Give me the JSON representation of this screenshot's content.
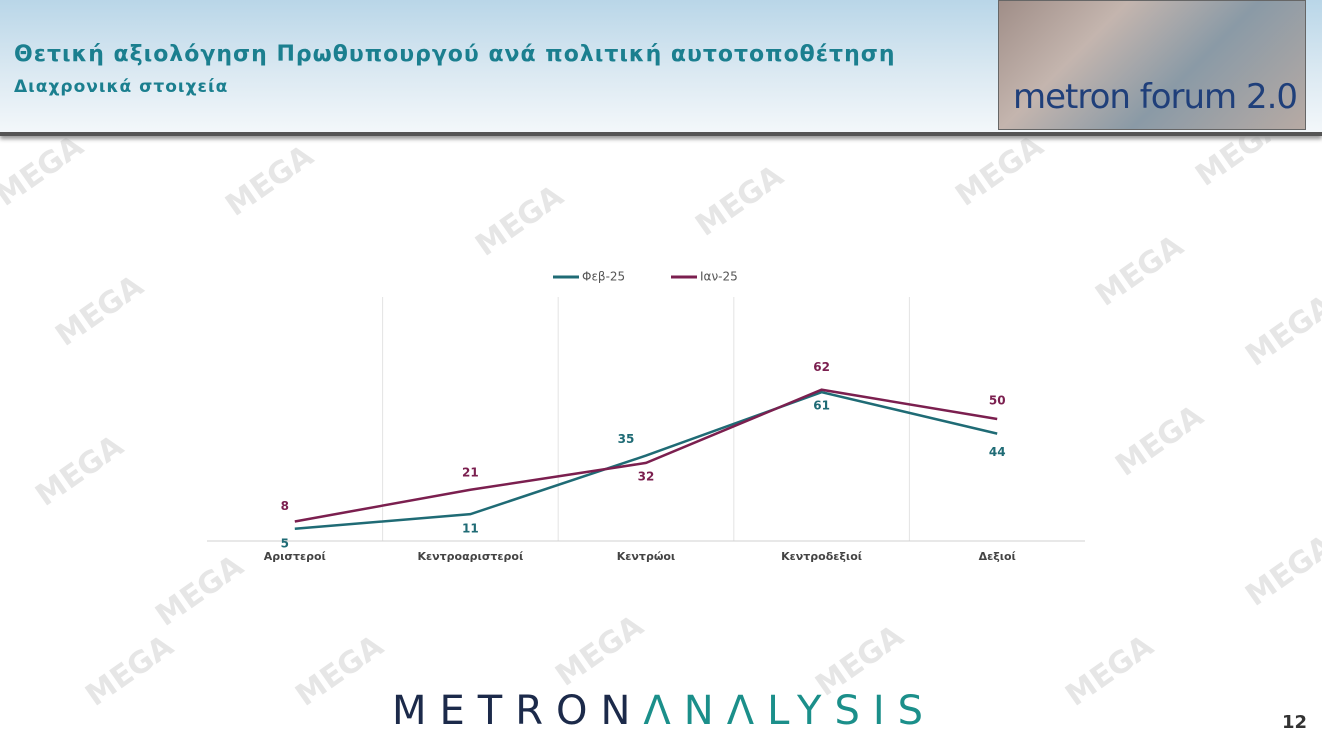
{
  "header": {
    "title": "Θετική αξιολόγηση Πρωθυπουργού ανά πολιτική αυτοτοποθέτηση",
    "subtitle": "Διαχρονικά στοιχεία",
    "logo": "metron forum 2.0"
  },
  "watermark": "MEGA",
  "chart_data": {
    "type": "line",
    "categories": [
      "Αριστεροί",
      "Κεντροαριστεροί",
      "Κεντρώοι",
      "Κεντροδεξιοί",
      "Δεξιοί"
    ],
    "series": [
      {
        "name": "Φεβ-25",
        "color": "#1f6b75",
        "values": [
          5,
          11,
          35,
          61,
          44
        ]
      },
      {
        "name": "Ιαν-25",
        "color": "#7b1f4f",
        "values": [
          8,
          21,
          32,
          62,
          50
        ]
      }
    ],
    "ylim": [
      0,
      100
    ],
    "grid": true,
    "legend": "top"
  },
  "footer": {
    "brand_a": "METRON",
    "brand_b": "ΛNΛLYSIS",
    "page": "12"
  }
}
